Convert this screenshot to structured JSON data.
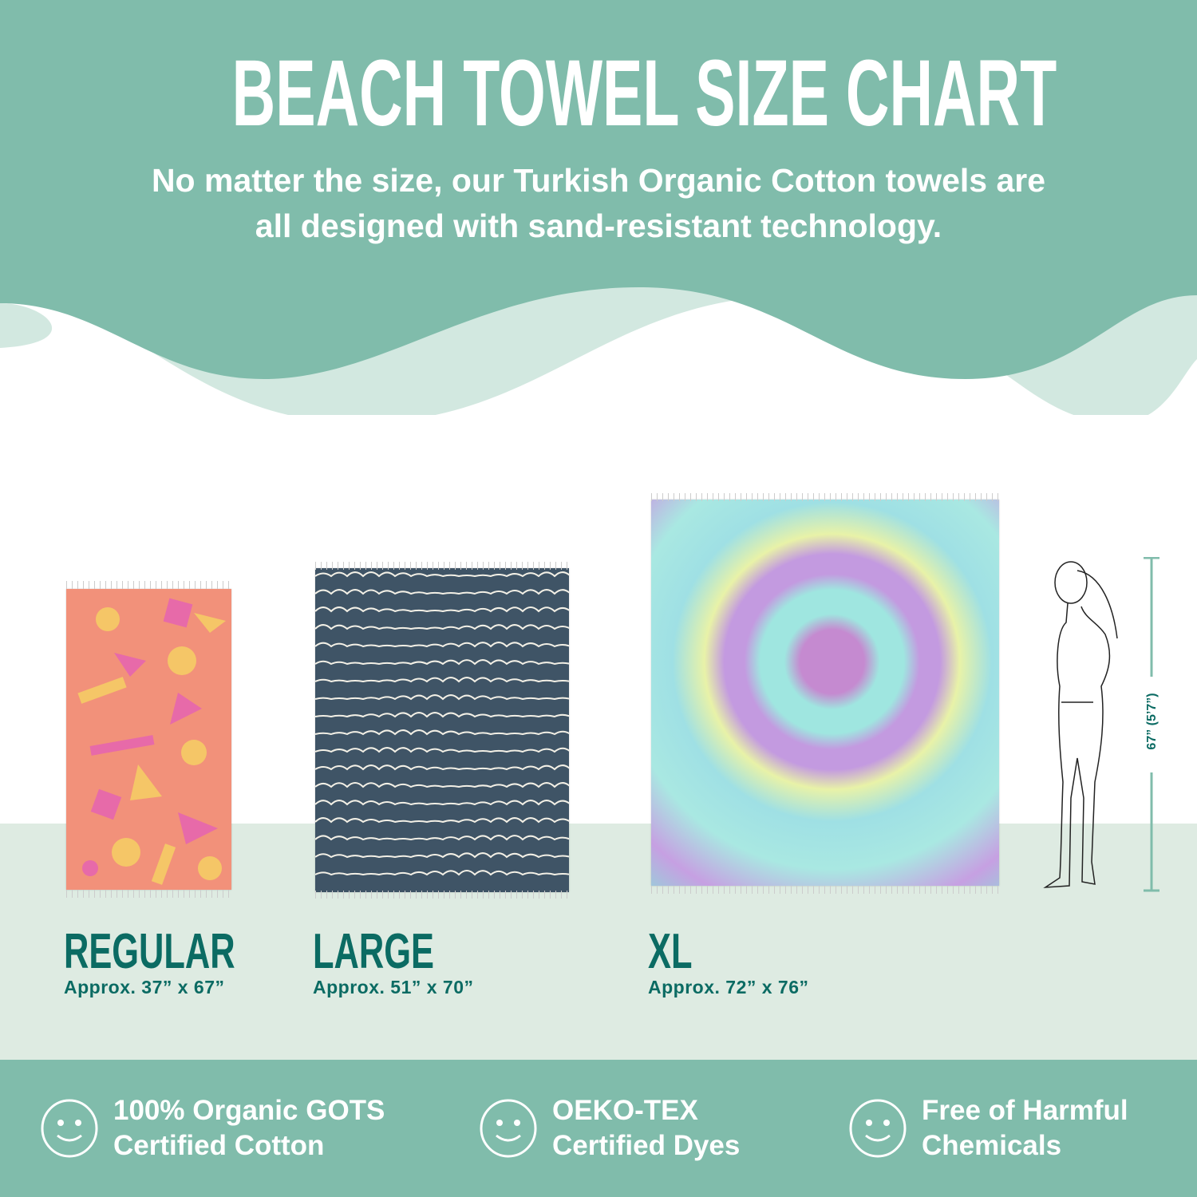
{
  "header": {
    "title": "BEACH TOWEL SIZE CHART",
    "subtitle_line1": "No matter the size, our Turkish Organic Cotton towels are",
    "subtitle_line2": "all designed with sand-resistant technology."
  },
  "sizes": [
    {
      "name": "REGULAR",
      "dimensions": "Approx. 37” x 67”",
      "pattern": "coral geometric shapes"
    },
    {
      "name": "LARGE",
      "dimensions": "Approx. 51” x 70”",
      "pattern": "navy wavy lines"
    },
    {
      "name": "XL",
      "dimensions": "Approx. 72” x 76”",
      "pattern": "pastel tie-dye spiral"
    }
  ],
  "reference": {
    "height_label": "67” (5’7”)",
    "icon": "standing-woman-figure"
  },
  "features": [
    {
      "icon": "smiley-icon",
      "line1": "100% Organic GOTS",
      "line2": "Certified Cotton"
    },
    {
      "icon": "smiley-icon",
      "line1": "OEKO-TEX",
      "line2": "Certified Dyes"
    },
    {
      "icon": "smiley-icon",
      "line1": "Free of Harmful",
      "line2": "Chemicals"
    }
  ],
  "colors": {
    "primary": "#80bcab",
    "wave_light": "#d2e8e0",
    "band": "#deebe2",
    "text_teal": "#0b6b63"
  }
}
